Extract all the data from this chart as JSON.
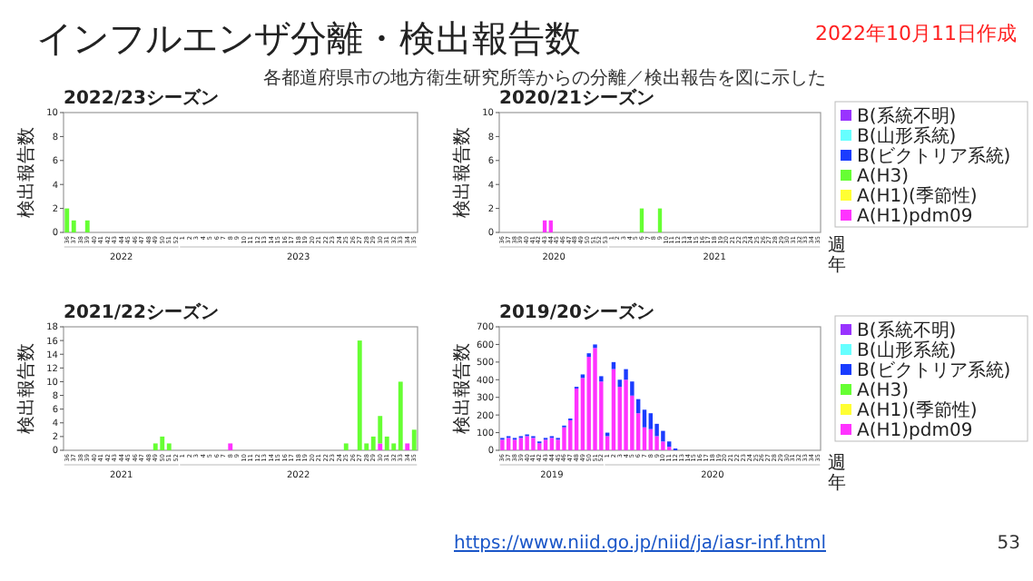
{
  "chart_data": [
    {
      "type": "other",
      "title": "インフルエンザ分離・検出報告数",
      "subtitle": "各都道府県市の地方衛生研究所等からの分離／検出報告を図に示した",
      "annotations": [
        "2022年10月11日作成",
        "https://www.niid.go.jp/niid/ja/iasr-inf.html",
        "53"
      ]
    },
    {
      "type": "bar",
      "stacked": true,
      "title": "2022/23シーズン",
      "ylabel": "検出報告数",
      "ylim": [
        0,
        10
      ],
      "yticks": [
        0,
        2,
        4,
        6,
        8,
        10
      ],
      "categories": [
        "36",
        "37",
        "38",
        "39",
        "40",
        "41",
        "42",
        "43",
        "44",
        "45",
        "46",
        "47",
        "48",
        "49",
        "50",
        "51",
        "52",
        "1",
        "2",
        "3",
        "4",
        "5",
        "6",
        "7",
        "8",
        "9",
        "10",
        "11",
        "12",
        "13",
        "14",
        "15",
        "16",
        "17",
        "18",
        "19",
        "20",
        "21",
        "22",
        "23",
        "24",
        "25",
        "26",
        "27",
        "28",
        "29",
        "30",
        "31",
        "32",
        "33",
        "34",
        "35"
      ],
      "annotations": [
        "2022",
        "2023"
      ],
      "series": [
        {
          "color": "#66ff33",
          "values": [
            2,
            1,
            0,
            1,
            0,
            0,
            0,
            0,
            0,
            0,
            0,
            0,
            0,
            0,
            0,
            0,
            0,
            0,
            0,
            0,
            0,
            0,
            0,
            0,
            0,
            0,
            0,
            0,
            0,
            0,
            0,
            0,
            0,
            0,
            0,
            0,
            0,
            0,
            0,
            0,
            0,
            0,
            0,
            0,
            0,
            0,
            0,
            0,
            0,
            0,
            0,
            0
          ]
        }
      ]
    },
    {
      "type": "bar",
      "stacked": true,
      "title": "2020/21シーズン",
      "ylabel": "検出報告数",
      "xlabel": "週",
      "legend": "right",
      "ylim": [
        0,
        10
      ],
      "yticks": [
        0,
        2,
        4,
        6,
        8,
        10
      ],
      "categories": [
        "36",
        "37",
        "38",
        "39",
        "40",
        "41",
        "42",
        "43",
        "44",
        "45",
        "46",
        "47",
        "48",
        "49",
        "50",
        "51",
        "52",
        "53",
        "1",
        "2",
        "3",
        "4",
        "5",
        "6",
        "7",
        "8",
        "9",
        "10",
        "11",
        "12",
        "13",
        "14",
        "15",
        "16",
        "17",
        "18",
        "19",
        "20",
        "21",
        "22",
        "23",
        "24",
        "25",
        "26",
        "27",
        "28",
        "29",
        "30",
        "31",
        "32",
        "33",
        "34",
        "35"
      ],
      "annotations": [
        "2020",
        "2021",
        "年"
      ],
      "series": [
        {
          "name": "A(H1)pdm09",
          "color": "#ff33ff",
          "values": [
            0,
            0,
            0,
            0,
            0,
            0,
            0,
            1,
            1,
            0,
            0,
            0,
            0,
            0,
            0,
            0,
            0,
            0,
            0,
            0,
            0,
            0,
            0,
            0,
            0,
            0,
            0,
            0,
            0,
            0,
            0,
            0,
            0,
            0,
            0,
            0,
            0,
            0,
            0,
            0,
            0,
            0,
            0,
            0,
            0,
            0,
            0,
            0,
            0,
            0,
            0,
            0,
            0
          ]
        },
        {
          "name": "A(H1)(季節性)",
          "color": "#ffff33",
          "values": [
            0,
            0,
            0,
            0,
            0,
            0,
            0,
            0,
            0,
            0,
            0,
            0,
            0,
            0,
            0,
            0,
            0,
            0,
            0,
            0,
            0,
            0,
            0,
            0,
            0,
            0,
            0,
            0,
            0,
            0,
            0,
            0,
            0,
            0,
            0,
            0,
            0,
            0,
            0,
            0,
            0,
            0,
            0,
            0,
            0,
            0,
            0,
            0,
            0,
            0,
            0,
            0,
            0
          ]
        },
        {
          "name": "A(H3)",
          "color": "#66ff33",
          "values": [
            0,
            0,
            0,
            0,
            0,
            0,
            0,
            0,
            0,
            0,
            0,
            0,
            0,
            0,
            0,
            0,
            0,
            0,
            0,
            0,
            0,
            0,
            0,
            2,
            0,
            0,
            2,
            0,
            0,
            0,
            0,
            0,
            0,
            0,
            0,
            0,
            0,
            0,
            0,
            0,
            0,
            0,
            0,
            0,
            0,
            0,
            0,
            0,
            0,
            0,
            0,
            0,
            0
          ]
        },
        {
          "name": "B(ビクトリア系統)",
          "color": "#1a3cff",
          "values": [
            0,
            0,
            0,
            0,
            0,
            0,
            0,
            0,
            0,
            0,
            0,
            0,
            0,
            0,
            0,
            0,
            0,
            0,
            0,
            0,
            0,
            0,
            0,
            0,
            0,
            0,
            0,
            0,
            0,
            0,
            0,
            0,
            0,
            0,
            0,
            0,
            0,
            0,
            0,
            0,
            0,
            0,
            0,
            0,
            0,
            0,
            0,
            0,
            0,
            0,
            0,
            0,
            0
          ]
        },
        {
          "name": "B(山形系統)",
          "color": "#66ffff",
          "values": [
            0,
            0,
            0,
            0,
            0,
            0,
            0,
            0,
            0,
            0,
            0,
            0,
            0,
            0,
            0,
            0,
            0,
            0,
            0,
            0,
            0,
            0,
            0,
            0,
            0,
            0,
            0,
            0,
            0,
            0,
            0,
            0,
            0,
            0,
            0,
            0,
            0,
            0,
            0,
            0,
            0,
            0,
            0,
            0,
            0,
            0,
            0,
            0,
            0,
            0,
            0,
            0,
            0
          ]
        },
        {
          "name": "B(系統不明)",
          "color": "#9933ff",
          "values": [
            0,
            0,
            0,
            0,
            0,
            0,
            0,
            0,
            0,
            0,
            0,
            0,
            0,
            0,
            0,
            0,
            0,
            0,
            0,
            0,
            0,
            0,
            0,
            0,
            0,
            0,
            0,
            0,
            0,
            0,
            0,
            0,
            0,
            0,
            0,
            0,
            0,
            0,
            0,
            0,
            0,
            0,
            0,
            0,
            0,
            0,
            0,
            0,
            0,
            0,
            0,
            0,
            0
          ]
        }
      ]
    },
    {
      "type": "bar",
      "stacked": true,
      "title": "2021/22シーズン",
      "ylabel": "検出報告数",
      "ylim": [
        0,
        18
      ],
      "yticks": [
        0,
        2,
        4,
        6,
        8,
        10,
        12,
        14,
        16,
        18
      ],
      "categories": [
        "36",
        "37",
        "38",
        "39",
        "40",
        "41",
        "42",
        "43",
        "44",
        "45",
        "46",
        "47",
        "48",
        "49",
        "50",
        "51",
        "52",
        "1",
        "2",
        "3",
        "4",
        "5",
        "6",
        "7",
        "8",
        "9",
        "10",
        "11",
        "12",
        "13",
        "14",
        "15",
        "16",
        "17",
        "18",
        "19",
        "20",
        "21",
        "22",
        "23",
        "24",
        "25",
        "26",
        "27",
        "28",
        "29",
        "30",
        "31",
        "32",
        "33",
        "34",
        "35"
      ],
      "annotations": [
        "2021",
        "2022"
      ],
      "series": [
        {
          "color": "#ff33ff",
          "values": [
            0,
            0,
            0,
            0,
            0,
            0,
            0,
            0,
            0,
            0,
            0,
            0,
            0,
            0,
            0,
            0,
            0,
            0,
            0,
            0,
            0,
            0,
            0,
            0,
            1,
            0,
            0,
            0,
            0,
            0,
            0,
            0,
            0,
            0,
            0,
            0,
            0,
            0,
            0,
            0,
            0,
            0,
            0,
            0,
            0,
            0,
            1,
            0,
            0,
            0,
            1,
            0
          ]
        },
        {
          "color": "#66ff33",
          "values": [
            0,
            0,
            0,
            0,
            0,
            0,
            0,
            0,
            0,
            0,
            0,
            0,
            0,
            1,
            2,
            1,
            0,
            0,
            0,
            0,
            0,
            0,
            0,
            0,
            0,
            0,
            0,
            0,
            0,
            0,
            0,
            0,
            0,
            0,
            0,
            0,
            0,
            0,
            0,
            0,
            0,
            1,
            0,
            16,
            1,
            2,
            4,
            2,
            1,
            10,
            0,
            3
          ]
        }
      ]
    },
    {
      "type": "bar",
      "stacked": true,
      "title": "2019/20シーズン",
      "ylabel": "検出報告数",
      "xlabel": "週",
      "legend": "right",
      "ylim": [
        0,
        700
      ],
      "yticks": [
        0,
        100,
        200,
        300,
        400,
        500,
        600,
        700
      ],
      "categories": [
        "36",
        "37",
        "38",
        "39",
        "40",
        "41",
        "42",
        "43",
        "44",
        "45",
        "46",
        "47",
        "48",
        "49",
        "50",
        "51",
        "52",
        "1",
        "2",
        "3",
        "4",
        "5",
        "6",
        "7",
        "8",
        "9",
        "10",
        "11",
        "12",
        "13",
        "14",
        "15",
        "16",
        "17",
        "18",
        "19",
        "20",
        "21",
        "22",
        "23",
        "24",
        "25",
        "26",
        "27",
        "28",
        "29",
        "30",
        "31",
        "32",
        "33",
        "34",
        "35"
      ],
      "annotations": [
        "2019",
        "2020",
        "年"
      ],
      "series": [
        {
          "name": "A(H1)pdm09",
          "color": "#ff33ff",
          "values": [
            60,
            70,
            60,
            70,
            80,
            70,
            40,
            60,
            70,
            60,
            130,
            170,
            350,
            410,
            530,
            580,
            390,
            80,
            460,
            360,
            400,
            310,
            210,
            130,
            120,
            80,
            50,
            20,
            0,
            0,
            0,
            0,
            0,
            0,
            0,
            0,
            0,
            0,
            0,
            0,
            0,
            0,
            0,
            0,
            0,
            0,
            0,
            0,
            0,
            0,
            0,
            0
          ]
        },
        {
          "name": "A(H1)(季節性)",
          "color": "#ffff33",
          "values": [
            0,
            0,
            0,
            0,
            0,
            0,
            0,
            0,
            0,
            0,
            0,
            0,
            0,
            0,
            0,
            0,
            0,
            0,
            0,
            0,
            0,
            0,
            0,
            0,
            0,
            0,
            0,
            0,
            0,
            0,
            0,
            0,
            0,
            0,
            0,
            0,
            0,
            0,
            0,
            0,
            0,
            0,
            0,
            0,
            0,
            0,
            0,
            0,
            0,
            0,
            0,
            0
          ]
        },
        {
          "name": "A(H3)",
          "color": "#66ff33",
          "values": [
            0,
            0,
            0,
            0,
            0,
            0,
            0,
            0,
            0,
            0,
            0,
            0,
            0,
            0,
            0,
            0,
            0,
            0,
            0,
            0,
            0,
            0,
            0,
            0,
            0,
            0,
            0,
            0,
            0,
            0,
            0,
            0,
            0,
            0,
            0,
            0,
            0,
            0,
            0,
            0,
            0,
            0,
            0,
            0,
            0,
            0,
            0,
            0,
            0,
            0,
            0,
            0
          ]
        },
        {
          "name": "B(ビクトリア系統)",
          "color": "#1a3cff",
          "values": [
            10,
            10,
            10,
            10,
            10,
            10,
            10,
            10,
            10,
            10,
            10,
            10,
            10,
            20,
            20,
            20,
            30,
            20,
            40,
            40,
            60,
            80,
            80,
            100,
            90,
            70,
            60,
            30,
            10,
            0,
            0,
            0,
            0,
            0,
            0,
            0,
            0,
            0,
            0,
            0,
            0,
            0,
            0,
            0,
            0,
            0,
            0,
            0,
            0,
            0,
            0,
            0
          ]
        },
        {
          "name": "B(山形系統)",
          "color": "#66ffff",
          "values": [
            0,
            0,
            0,
            0,
            0,
            0,
            0,
            0,
            0,
            0,
            0,
            0,
            0,
            0,
            0,
            0,
            0,
            0,
            0,
            0,
            0,
            0,
            0,
            0,
            0,
            0,
            0,
            0,
            0,
            0,
            0,
            0,
            0,
            0,
            0,
            0,
            0,
            0,
            0,
            0,
            0,
            0,
            0,
            0,
            0,
            0,
            0,
            0,
            0,
            0,
            0,
            0
          ]
        },
        {
          "name": "B(系統不明)",
          "color": "#9933ff",
          "values": [
            0,
            0,
            0,
            0,
            0,
            0,
            0,
            0,
            0,
            0,
            0,
            0,
            0,
            0,
            0,
            0,
            0,
            0,
            0,
            0,
            0,
            0,
            0,
            0,
            0,
            0,
            0,
            0,
            0,
            0,
            0,
            0,
            0,
            0,
            0,
            0,
            0,
            0,
            0,
            0,
            0,
            0,
            0,
            0,
            0,
            0,
            0,
            0,
            0,
            0,
            0,
            0
          ]
        }
      ]
    }
  ]
}
